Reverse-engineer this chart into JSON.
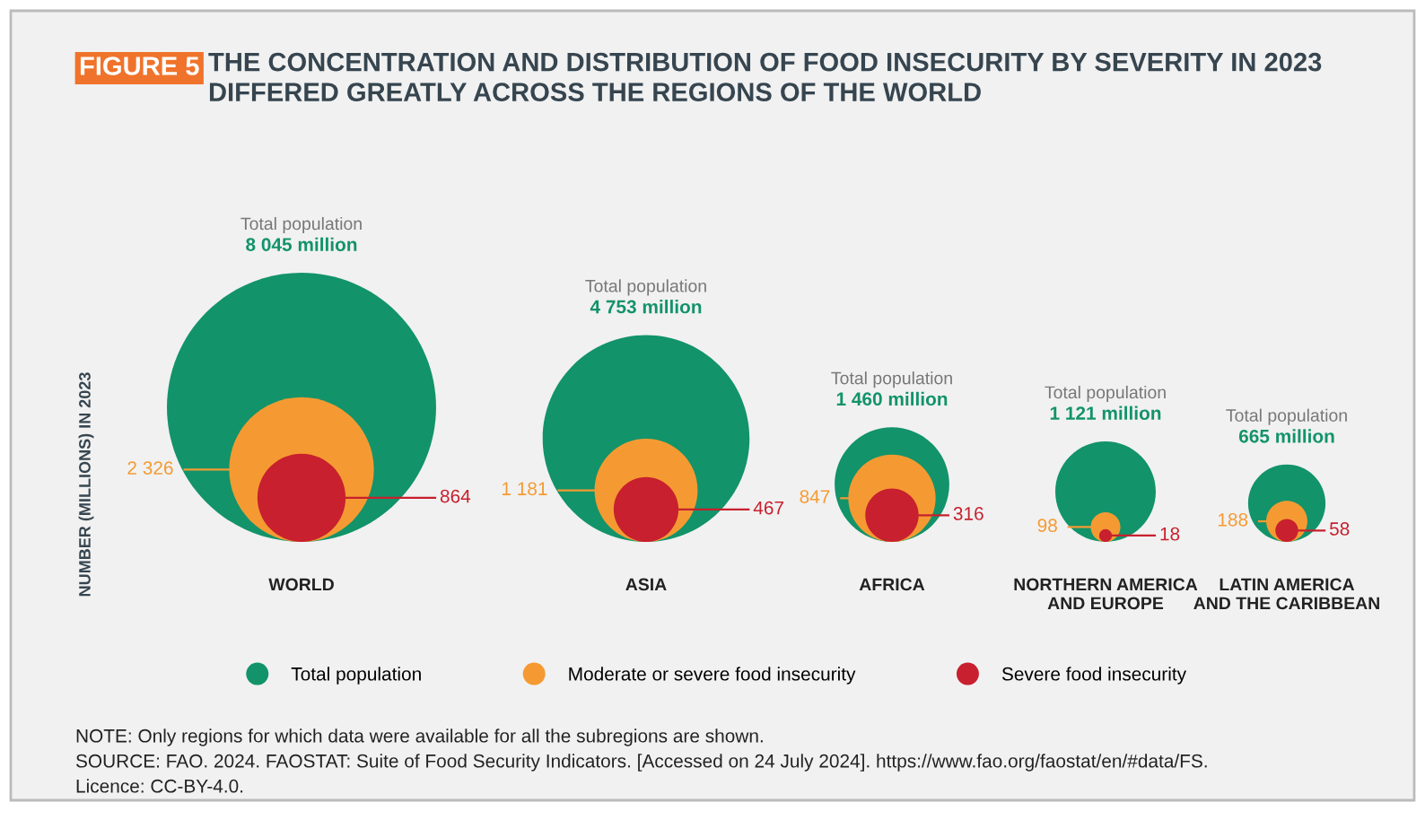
{
  "chart_data": {
    "type": "other",
    "title": "THE CONCENTRATION AND DISTRIBUTION OF FOOD INSECURITY BY SEVERITY IN 2023 DIFFERED GREATLY ACROSS THE REGIONS OF THE WORLD",
    "ylabel": "NUMBER (MILLIONS) IN 2023",
    "categories": [
      "WORLD",
      "ASIA",
      "AFRICA",
      "NORTHERN AMERICA\nAND EUROPE",
      "LATIN AMERICA\nAND THE CARIBBEAN"
    ],
    "series": [
      {
        "name": "Total population",
        "color": "#12936a",
        "values": [
          8045,
          4753,
          1460,
          1121,
          665
        ],
        "value_labels": [
          "8 045 million",
          "4 753 million",
          "1 460 million",
          "1 121 million",
          "665 million"
        ]
      },
      {
        "name": "Moderate or severe food insecurity",
        "color": "#f59a32",
        "values": [
          2326,
          1181,
          847,
          98,
          188
        ],
        "value_labels": [
          "2 326",
          "1 181",
          "847",
          "98",
          "188"
        ]
      },
      {
        "name": "Severe food insecurity",
        "color": "#c8202e",
        "values": [
          864,
          467,
          316,
          18,
          58
        ],
        "value_labels": [
          "864",
          "467",
          "316",
          "18",
          "58"
        ]
      }
    ],
    "legend": "bottom",
    "annotations": [
      "FIGURE 5",
      "NOTE: Only regions for which data were available for all the subregions are shown.",
      "SOURCE: FAO. 2024. FAOSTAT: Suite of Food Security Indicators. [Accessed on 24 July 2024]. https://www.fao.org/faostat/en/#data/FS.",
      "Licence: CC-BY-4.0."
    ]
  }
}
